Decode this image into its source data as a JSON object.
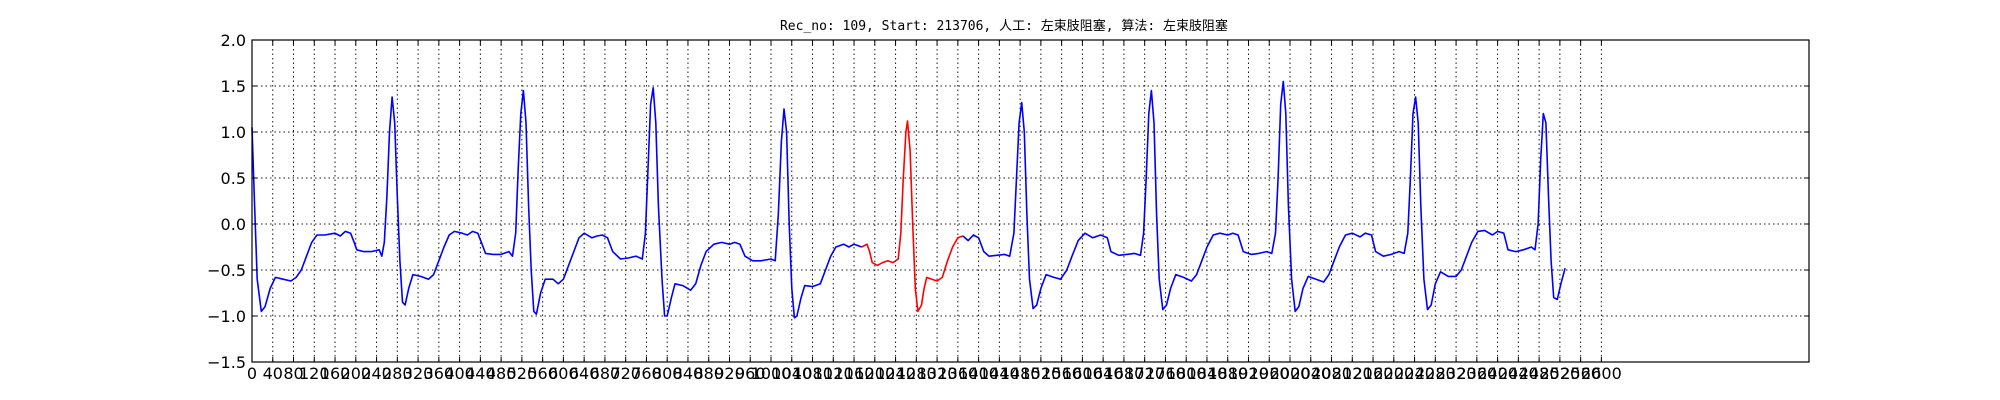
{
  "chart_data": {
    "type": "line",
    "title": "Rec_no: 109, Start: 213706, 人工: 左束肢阻塞, 算法: 左束肢阻塞",
    "xlabel": "",
    "ylabel": "",
    "xlim": [
      0,
      3000
    ],
    "ylim": [
      -1.5,
      2.0
    ],
    "grid": true,
    "colors": {
      "normal": "#0000ff",
      "highlight": "#ff0000"
    },
    "yticks": [
      -1.5,
      -1.0,
      -0.5,
      0.0,
      0.5,
      1.0,
      1.5,
      2.0
    ],
    "ytick_labels": [
      "−1.5",
      "−1.0",
      "−0.5",
      "0.0",
      "0.5",
      "1.0",
      "1.5",
      "2.0"
    ],
    "xticks": [
      0,
      40,
      80,
      120,
      160,
      200,
      240,
      280,
      320,
      360,
      400,
      440,
      480,
      520,
      560,
      600,
      640,
      680,
      720,
      760,
      800,
      840,
      880,
      920,
      960,
      1000,
      1040,
      1080,
      1120,
      1160,
      1200,
      1240,
      1280,
      1320,
      1360,
      1400,
      1440,
      1480,
      1520,
      1560,
      1600,
      1640,
      1680,
      1720,
      1760,
      1800,
      1840,
      1880,
      1920,
      1960,
      2000,
      2040,
      2080,
      2120,
      2160,
      2200,
      2240,
      2280,
      2320,
      2360,
      2400,
      2440,
      2480,
      2520,
      2560,
      2600
    ],
    "xtick_labels": [
      "0",
      "40",
      "80",
      "120",
      "160",
      "200",
      "240",
      "280",
      "320",
      "360",
      "400",
      "440",
      "480",
      "520",
      "560",
      "600",
      "640",
      "680",
      "720",
      "760",
      "800",
      "840",
      "880",
      "920",
      "960",
      "1000",
      "1040",
      "1080",
      "1120",
      "1160",
      "1200",
      "1240",
      "1280",
      "1320",
      "1360",
      "1400",
      "1440",
      "1480",
      "1520",
      "1560",
      "1600",
      "1640",
      "1680",
      "1720",
      "1760",
      "1800",
      "1840",
      "1880",
      "1920",
      "1960",
      "2000",
      "2040",
      "2080",
      "2120",
      "2160",
      "2200",
      "2240",
      "2280",
      "2320",
      "2360",
      "2400",
      "2440",
      "2480",
      "2520",
      "2560",
      "2600"
    ],
    "series": [
      {
        "color": "#0000ff",
        "segment": "before",
        "points": [
          [
            0,
            1.05
          ],
          [
            5,
            0.2
          ],
          [
            10,
            -0.6
          ],
          [
            18,
            -0.95
          ],
          [
            25,
            -0.9
          ],
          [
            35,
            -0.7
          ],
          [
            45,
            -0.58
          ],
          [
            60,
            -0.6
          ],
          [
            75,
            -0.62
          ],
          [
            85,
            -0.58
          ],
          [
            95,
            -0.5
          ],
          [
            105,
            -0.35
          ],
          [
            115,
            -0.2
          ],
          [
            125,
            -0.12
          ],
          [
            140,
            -0.12
          ],
          [
            160,
            -0.1
          ],
          [
            170,
            -0.13
          ],
          [
            180,
            -0.08
          ],
          [
            190,
            -0.1
          ],
          [
            197,
            -0.2
          ],
          [
            202,
            -0.28
          ],
          [
            215,
            -0.3
          ],
          [
            230,
            -0.3
          ],
          [
            245,
            -0.28
          ],
          [
            250,
            -0.35
          ],
          [
            255,
            -0.2
          ],
          [
            260,
            0.3
          ],
          [
            265,
            1.0
          ],
          [
            270,
            1.38
          ],
          [
            275,
            1.1
          ],
          [
            280,
            0.3
          ],
          [
            285,
            -0.4
          ],
          [
            290,
            -0.85
          ],
          [
            295,
            -0.88
          ],
          [
            302,
            -0.7
          ],
          [
            310,
            -0.55
          ],
          [
            325,
            -0.57
          ],
          [
            340,
            -0.6
          ],
          [
            350,
            -0.55
          ],
          [
            360,
            -0.4
          ],
          [
            370,
            -0.25
          ],
          [
            380,
            -0.12
          ],
          [
            390,
            -0.08
          ],
          [
            405,
            -0.1
          ],
          [
            415,
            -0.12
          ],
          [
            425,
            -0.08
          ],
          [
            435,
            -0.1
          ],
          [
            442,
            -0.2
          ],
          [
            450,
            -0.32
          ],
          [
            465,
            -0.33
          ],
          [
            480,
            -0.33
          ],
          [
            495,
            -0.3
          ],
          [
            502,
            -0.35
          ],
          [
            508,
            -0.1
          ],
          [
            513,
            0.6
          ],
          [
            518,
            1.2
          ],
          [
            523,
            1.45
          ],
          [
            528,
            1.1
          ],
          [
            533,
            0.2
          ],
          [
            538,
            -0.5
          ],
          [
            543,
            -0.95
          ],
          [
            548,
            -0.98
          ],
          [
            556,
            -0.75
          ],
          [
            565,
            -0.6
          ],
          [
            580,
            -0.6
          ],
          [
            590,
            -0.65
          ],
          [
            600,
            -0.6
          ],
          [
            610,
            -0.45
          ],
          [
            620,
            -0.3
          ],
          [
            630,
            -0.15
          ],
          [
            640,
            -0.1
          ],
          [
            655,
            -0.15
          ],
          [
            665,
            -0.13
          ],
          [
            675,
            -0.12
          ],
          [
            685,
            -0.15
          ],
          [
            695,
            -0.3
          ],
          [
            710,
            -0.38
          ],
          [
            725,
            -0.37
          ],
          [
            740,
            -0.35
          ],
          [
            752,
            -0.38
          ],
          [
            758,
            -0.1
          ],
          [
            763,
            0.6
          ],
          [
            768,
            1.3
          ],
          [
            773,
            1.48
          ],
          [
            778,
            1.1
          ],
          [
            783,
            0.2
          ],
          [
            790,
            -0.6
          ],
          [
            795,
            -1.0
          ],
          [
            800,
            -1.0
          ],
          [
            808,
            -0.8
          ],
          [
            815,
            -0.65
          ],
          [
            830,
            -0.67
          ],
          [
            845,
            -0.72
          ],
          [
            855,
            -0.65
          ],
          [
            865,
            -0.45
          ],
          [
            875,
            -0.3
          ],
          [
            890,
            -0.22
          ],
          [
            905,
            -0.2
          ],
          [
            920,
            -0.22
          ],
          [
            930,
            -0.2
          ],
          [
            940,
            -0.22
          ],
          [
            950,
            -0.35
          ],
          [
            965,
            -0.4
          ],
          [
            980,
            -0.4
          ],
          [
            1000,
            -0.38
          ],
          [
            1008,
            -0.4
          ],
          [
            1014,
            0.1
          ],
          [
            1020,
            0.9
          ],
          [
            1025,
            1.25
          ],
          [
            1030,
            1.0
          ],
          [
            1035,
            0.0
          ],
          [
            1040,
            -0.7
          ],
          [
            1045,
            -1.02
          ],
          [
            1050,
            -1.0
          ],
          [
            1058,
            -0.8
          ],
          [
            1065,
            -0.67
          ],
          [
            1080,
            -0.68
          ],
          [
            1095,
            -0.65
          ],
          [
            1105,
            -0.5
          ],
          [
            1115,
            -0.35
          ],
          [
            1125,
            -0.25
          ],
          [
            1140,
            -0.22
          ],
          [
            1150,
            -0.25
          ],
          [
            1160,
            -0.22
          ],
          [
            1175,
            -0.25
          ]
        ]
      },
      {
        "color": "#ff0000",
        "segment": "highlight",
        "points": [
          [
            1175,
            -0.25
          ],
          [
            1185,
            -0.22
          ],
          [
            1190,
            -0.3
          ],
          [
            1195,
            -0.42
          ],
          [
            1205,
            -0.45
          ],
          [
            1215,
            -0.42
          ],
          [
            1225,
            -0.4
          ],
          [
            1235,
            -0.42
          ],
          [
            1245,
            -0.38
          ],
          [
            1250,
            -0.1
          ],
          [
            1255,
            0.5
          ],
          [
            1260,
            1.0
          ],
          [
            1263,
            1.12
          ],
          [
            1268,
            0.8
          ],
          [
            1273,
            0.0
          ],
          [
            1278,
            -0.7
          ],
          [
            1283,
            -0.95
          ],
          [
            1290,
            -0.88
          ],
          [
            1295,
            -0.7
          ],
          [
            1300,
            -0.58
          ],
          [
            1310,
            -0.6
          ],
          [
            1320,
            -0.62
          ],
          [
            1330,
            -0.58
          ],
          [
            1340,
            -0.4
          ],
          [
            1350,
            -0.25
          ],
          [
            1360,
            -0.15
          ],
          [
            1370,
            -0.13
          ]
        ]
      },
      {
        "color": "#0000ff",
        "segment": "after",
        "points": [
          [
            1370,
            -0.13
          ],
          [
            1380,
            -0.18
          ],
          [
            1390,
            -0.12
          ],
          [
            1400,
            -0.15
          ],
          [
            1410,
            -0.3
          ],
          [
            1420,
            -0.35
          ],
          [
            1435,
            -0.34
          ],
          [
            1450,
            -0.33
          ],
          [
            1460,
            -0.35
          ],
          [
            1468,
            -0.1
          ],
          [
            1473,
            0.5
          ],
          [
            1478,
            1.1
          ],
          [
            1483,
            1.32
          ],
          [
            1488,
            1.0
          ],
          [
            1493,
            0.1
          ],
          [
            1498,
            -0.6
          ],
          [
            1505,
            -0.92
          ],
          [
            1512,
            -0.88
          ],
          [
            1520,
            -0.7
          ],
          [
            1530,
            -0.55
          ],
          [
            1545,
            -0.58
          ],
          [
            1558,
            -0.6
          ],
          [
            1570,
            -0.5
          ],
          [
            1580,
            -0.35
          ],
          [
            1592,
            -0.18
          ],
          [
            1605,
            -0.1
          ],
          [
            1620,
            -0.15
          ],
          [
            1635,
            -0.12
          ],
          [
            1648,
            -0.15
          ],
          [
            1655,
            -0.3
          ],
          [
            1670,
            -0.34
          ],
          [
            1685,
            -0.33
          ],
          [
            1700,
            -0.32
          ],
          [
            1712,
            -0.34
          ],
          [
            1718,
            -0.1
          ],
          [
            1723,
            0.5
          ],
          [
            1728,
            1.2
          ],
          [
            1733,
            1.45
          ],
          [
            1738,
            1.1
          ],
          [
            1743,
            0.1
          ],
          [
            1748,
            -0.6
          ],
          [
            1755,
            -0.93
          ],
          [
            1762,
            -0.88
          ],
          [
            1770,
            -0.7
          ],
          [
            1780,
            -0.55
          ],
          [
            1795,
            -0.58
          ],
          [
            1810,
            -0.62
          ],
          [
            1820,
            -0.55
          ],
          [
            1830,
            -0.4
          ],
          [
            1840,
            -0.25
          ],
          [
            1852,
            -0.12
          ],
          [
            1865,
            -0.1
          ],
          [
            1880,
            -0.12
          ],
          [
            1890,
            -0.1
          ],
          [
            1900,
            -0.12
          ],
          [
            1910,
            -0.3
          ],
          [
            1925,
            -0.33
          ],
          [
            1940,
            -0.32
          ],
          [
            1955,
            -0.3
          ],
          [
            1965,
            -0.32
          ],
          [
            1972,
            -0.1
          ],
          [
            1977,
            0.5
          ],
          [
            1982,
            1.3
          ],
          [
            1987,
            1.55
          ],
          [
            1992,
            1.2
          ],
          [
            1997,
            0.2
          ],
          [
            2003,
            -0.6
          ],
          [
            2010,
            -0.95
          ],
          [
            2017,
            -0.9
          ],
          [
            2025,
            -0.7
          ],
          [
            2035,
            -0.57
          ],
          [
            2050,
            -0.6
          ],
          [
            2065,
            -0.63
          ],
          [
            2075,
            -0.55
          ],
          [
            2085,
            -0.4
          ],
          [
            2095,
            -0.25
          ],
          [
            2107,
            -0.12
          ],
          [
            2120,
            -0.1
          ],
          [
            2135,
            -0.14
          ],
          [
            2145,
            -0.1
          ],
          [
            2157,
            -0.12
          ],
          [
            2165,
            -0.3
          ],
          [
            2180,
            -0.35
          ],
          [
            2195,
            -0.33
          ],
          [
            2210,
            -0.3
          ],
          [
            2220,
            -0.32
          ],
          [
            2227,
            -0.1
          ],
          [
            2232,
            0.5
          ],
          [
            2237,
            1.2
          ],
          [
            2242,
            1.38
          ],
          [
            2247,
            1.1
          ],
          [
            2252,
            0.2
          ],
          [
            2258,
            -0.6
          ],
          [
            2265,
            -0.93
          ],
          [
            2272,
            -0.88
          ],
          [
            2280,
            -0.65
          ],
          [
            2290,
            -0.52
          ],
          [
            2305,
            -0.57
          ],
          [
            2320,
            -0.57
          ],
          [
            2330,
            -0.5
          ],
          [
            2340,
            -0.35
          ],
          [
            2350,
            -0.2
          ],
          [
            2362,
            -0.08
          ],
          [
            2375,
            -0.07
          ],
          [
            2390,
            -0.12
          ],
          [
            2400,
            -0.08
          ],
          [
            2412,
            -0.1
          ],
          [
            2420,
            -0.28
          ],
          [
            2435,
            -0.3
          ],
          [
            2450,
            -0.28
          ],
          [
            2465,
            -0.25
          ],
          [
            2472,
            -0.28
          ],
          [
            2478,
            0.0
          ],
          [
            2483,
            0.7
          ],
          [
            2488,
            1.2
          ],
          [
            2493,
            1.1
          ],
          [
            2498,
            0.3
          ],
          [
            2503,
            -0.4
          ],
          [
            2508,
            -0.8
          ],
          [
            2515,
            -0.82
          ],
          [
            2522,
            -0.65
          ],
          [
            2530,
            -0.48
          ]
        ]
      }
    ]
  }
}
